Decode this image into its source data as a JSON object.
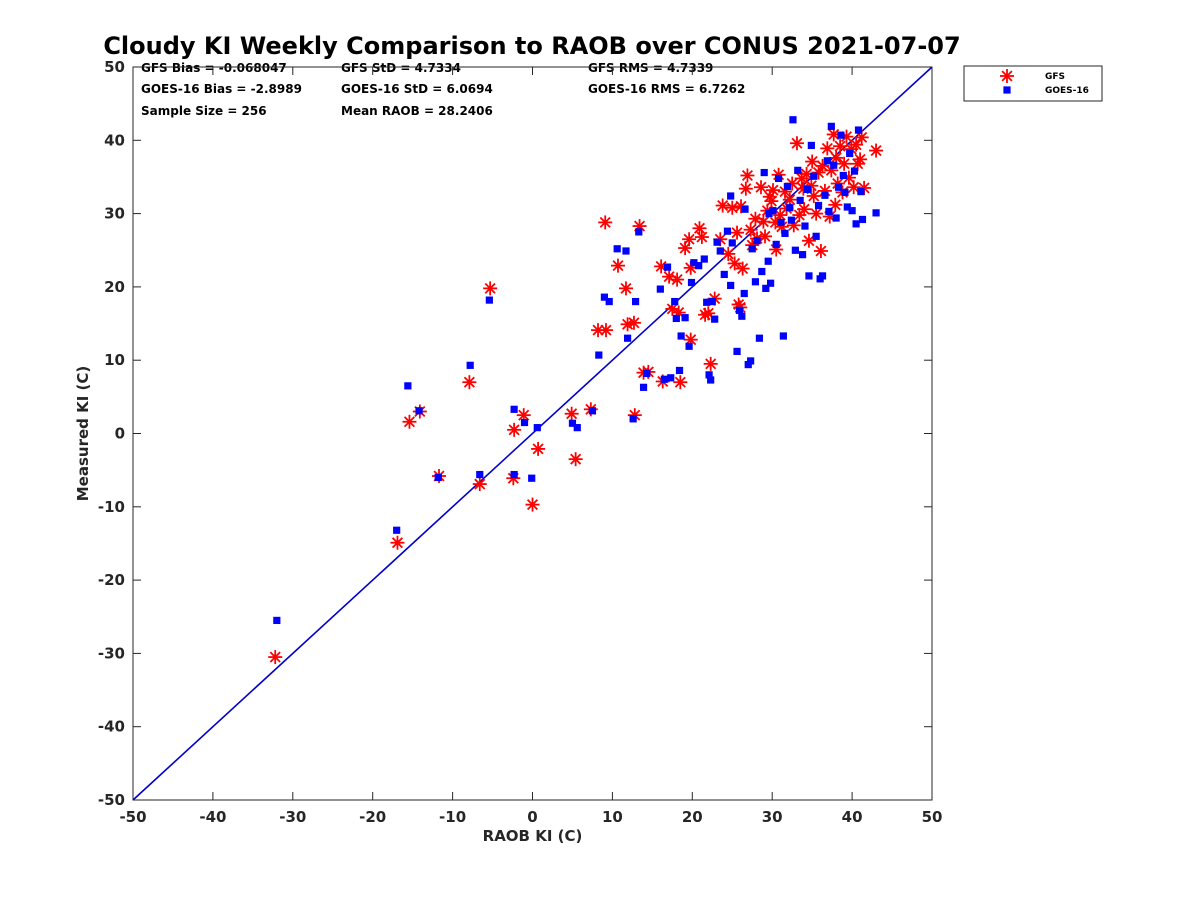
{
  "chart_data": {
    "type": "scatter",
    "title": "Cloudy KI Weekly Comparison to RAOB over CONUS 2021-07-07",
    "xlabel": "RAOB KI (C)",
    "ylabel": "Measured KI (C)",
    "xlim": [
      -50,
      50
    ],
    "ylim": [
      -50,
      50
    ],
    "x_ticks": [
      "-50",
      "-40",
      "-30",
      "-20",
      "-10",
      "0",
      "10",
      "20",
      "30",
      "40",
      "50"
    ],
    "y_ticks": [
      "-50",
      "-40",
      "-30",
      "-20",
      "-10",
      "0",
      "10",
      "20",
      "30",
      "40",
      "50"
    ],
    "grid": false,
    "legend_position": "top-right, outside",
    "reference_line": {
      "from": [
        -50,
        -50
      ],
      "to": [
        50,
        50
      ],
      "color": "#0000cc"
    },
    "stats": [
      {
        "label": "GFS Bias = -0.068047"
      },
      {
        "label": "GFS StD = 4.7334"
      },
      {
        "label": "GFS RMS = 4.7339"
      },
      {
        "label": "GOES-16 Bias = -2.8989"
      },
      {
        "label": "GOES-16 StD = 6.0694"
      },
      {
        "label": "GOES-16 RMS = 6.7262"
      },
      {
        "label": "Sample Size = 256"
      },
      {
        "label": "Mean RAOB = 28.2406"
      }
    ],
    "series": [
      {
        "name": "GFS",
        "marker": "asterisk",
        "color": "#ff0000",
        "points": [
          [
            -32.2,
            -30.5
          ],
          [
            -16.9,
            -14.9
          ],
          [
            -15.4,
            1.6
          ],
          [
            -14.1,
            3.0
          ],
          [
            -11.7,
            -5.8
          ],
          [
            -7.9,
            7.0
          ],
          [
            -6.6,
            -6.9
          ],
          [
            -5.3,
            19.8
          ],
          [
            -2.4,
            -6.1
          ],
          [
            -2.3,
            0.5
          ],
          [
            -1.1,
            2.5
          ],
          [
            0.0,
            -9.7
          ],
          [
            0.7,
            -2.1
          ],
          [
            4.9,
            2.7
          ],
          [
            5.4,
            -3.5
          ],
          [
            7.3,
            3.3
          ],
          [
            8.2,
            14.1
          ],
          [
            9.2,
            14.1
          ],
          [
            9.1,
            28.8
          ],
          [
            10.7,
            22.9
          ],
          [
            11.7,
            19.8
          ],
          [
            11.9,
            14.9
          ],
          [
            12.7,
            15.1
          ],
          [
            12.8,
            2.5
          ],
          [
            13.4,
            28.3
          ],
          [
            13.9,
            8.3
          ],
          [
            14.5,
            8.4
          ],
          [
            16.1,
            22.8
          ],
          [
            16.3,
            7.1
          ],
          [
            17.1,
            21.4
          ],
          [
            17.5,
            17.0
          ],
          [
            18.1,
            21.0
          ],
          [
            18.3,
            16.5
          ],
          [
            18.5,
            7.0
          ],
          [
            19.1,
            25.3
          ],
          [
            19.6,
            26.5
          ],
          [
            19.8,
            12.8
          ],
          [
            19.8,
            22.6
          ],
          [
            20.9,
            28.0
          ],
          [
            21.2,
            26.8
          ],
          [
            21.6,
            16.2
          ],
          [
            22.0,
            16.4
          ],
          [
            22.3,
            9.5
          ],
          [
            22.8,
            18.4
          ],
          [
            23.5,
            26.5
          ],
          [
            23.8,
            31.1
          ],
          [
            24.5,
            24.5
          ],
          [
            25.0,
            30.8
          ],
          [
            25.3,
            23.2
          ],
          [
            25.6,
            27.4
          ],
          [
            25.8,
            17.6
          ],
          [
            26.0,
            17.2
          ],
          [
            26.1,
            31.0
          ],
          [
            26.3,
            22.5
          ],
          [
            26.7,
            33.4
          ],
          [
            26.9,
            35.2
          ],
          [
            27.3,
            27.8
          ],
          [
            27.5,
            25.7
          ],
          [
            28.1,
            26.6
          ],
          [
            28.6,
            33.6
          ],
          [
            28.9,
            28.9
          ],
          [
            29.1,
            26.9
          ],
          [
            29.4,
            30.4
          ],
          [
            29.7,
            32.3
          ],
          [
            30.1,
            33.2
          ],
          [
            30.5,
            25.1
          ],
          [
            30.8,
            35.3
          ],
          [
            31.0,
            29.8
          ],
          [
            31.2,
            28.2
          ],
          [
            31.6,
            33.0
          ],
          [
            31.8,
            30.7
          ],
          [
            32.2,
            31.9
          ],
          [
            32.5,
            34.1
          ],
          [
            32.7,
            28.4
          ],
          [
            33.1,
            39.6
          ],
          [
            33.4,
            29.8
          ],
          [
            33.7,
            34.8
          ],
          [
            34.0,
            30.6
          ],
          [
            34.3,
            35.4
          ],
          [
            34.6,
            26.3
          ],
          [
            34.9,
            33.8
          ],
          [
            35.2,
            32.4
          ],
          [
            35.5,
            30.0
          ],
          [
            35.8,
            35.6
          ],
          [
            36.1,
            24.9
          ],
          [
            36.3,
            36.5
          ],
          [
            36.6,
            33.1
          ],
          [
            36.9,
            38.9
          ],
          [
            37.2,
            29.6
          ],
          [
            37.4,
            35.9
          ],
          [
            37.7,
            40.8
          ],
          [
            38.0,
            37.6
          ],
          [
            38.2,
            34.1
          ],
          [
            38.5,
            39.2
          ],
          [
            38.8,
            32.9
          ],
          [
            39.0,
            36.8
          ],
          [
            39.3,
            40.5
          ],
          [
            39.6,
            34.9
          ],
          [
            39.9,
            38.8
          ],
          [
            40.2,
            33.6
          ],
          [
            40.5,
            39.4
          ],
          [
            40.7,
            36.8
          ],
          [
            41.0,
            37.4
          ],
          [
            41.2,
            40.4
          ],
          [
            41.5,
            33.5
          ],
          [
            43.0,
            38.6
          ],
          [
            27.9,
            29.3
          ],
          [
            29.9,
            31.7
          ],
          [
            30.4,
            28.8
          ],
          [
            33.9,
            33.4
          ],
          [
            35.0,
            37.1
          ],
          [
            37.9,
            31.2
          ]
        ]
      },
      {
        "name": "GOES-16",
        "marker": "square",
        "color": "#0000ff",
        "points": [
          [
            -32.0,
            -25.5
          ],
          [
            -17.0,
            -13.2
          ],
          [
            -15.6,
            6.5
          ],
          [
            -14.2,
            3.1
          ],
          [
            -11.8,
            -6.0
          ],
          [
            -7.8,
            9.3
          ],
          [
            -6.6,
            -5.6
          ],
          [
            -5.4,
            18.2
          ],
          [
            -2.3,
            -5.6
          ],
          [
            -2.3,
            3.3
          ],
          [
            -1.0,
            1.5
          ],
          [
            -0.1,
            -6.1
          ],
          [
            0.6,
            0.8
          ],
          [
            5.0,
            1.4
          ],
          [
            5.6,
            0.8
          ],
          [
            7.5,
            3.1
          ],
          [
            8.3,
            10.7
          ],
          [
            9.0,
            18.6
          ],
          [
            9.6,
            18.0
          ],
          [
            10.6,
            25.2
          ],
          [
            11.7,
            24.9
          ],
          [
            11.9,
            13.0
          ],
          [
            12.6,
            2.0
          ],
          [
            12.9,
            18.0
          ],
          [
            13.3,
            27.5
          ],
          [
            13.9,
            6.3
          ],
          [
            14.3,
            8.2
          ],
          [
            16.0,
            19.7
          ],
          [
            16.5,
            7.4
          ],
          [
            16.9,
            22.7
          ],
          [
            17.3,
            7.6
          ],
          [
            17.8,
            18.0
          ],
          [
            18.0,
            15.7
          ],
          [
            18.4,
            8.6
          ],
          [
            18.6,
            13.3
          ],
          [
            19.1,
            15.8
          ],
          [
            19.6,
            11.9
          ],
          [
            19.9,
            20.6
          ],
          [
            20.2,
            23.3
          ],
          [
            20.8,
            22.9
          ],
          [
            21.5,
            23.8
          ],
          [
            21.8,
            17.9
          ],
          [
            22.1,
            8.0
          ],
          [
            22.3,
            7.3
          ],
          [
            22.5,
            18.0
          ],
          [
            22.8,
            15.6
          ],
          [
            23.1,
            26.1
          ],
          [
            23.5,
            24.9
          ],
          [
            24.0,
            21.7
          ],
          [
            24.4,
            27.6
          ],
          [
            24.8,
            20.2
          ],
          [
            25.0,
            26.0
          ],
          [
            25.6,
            11.2
          ],
          [
            25.9,
            16.8
          ],
          [
            26.2,
            16.0
          ],
          [
            26.5,
            19.1
          ],
          [
            27.0,
            9.4
          ],
          [
            27.3,
            9.9
          ],
          [
            27.5,
            25.2
          ],
          [
            27.9,
            20.7
          ],
          [
            28.1,
            26.3
          ],
          [
            28.4,
            13.0
          ],
          [
            28.7,
            22.1
          ],
          [
            29.0,
            35.6
          ],
          [
            29.2,
            19.8
          ],
          [
            29.5,
            23.5
          ],
          [
            29.8,
            20.5
          ],
          [
            30.1,
            30.4
          ],
          [
            30.5,
            25.8
          ],
          [
            30.8,
            34.8
          ],
          [
            31.1,
            28.8
          ],
          [
            31.4,
            13.3
          ],
          [
            31.6,
            27.3
          ],
          [
            31.9,
            33.7
          ],
          [
            32.2,
            30.8
          ],
          [
            32.6,
            42.8
          ],
          [
            32.9,
            25.0
          ],
          [
            33.2,
            35.9
          ],
          [
            33.5,
            31.8
          ],
          [
            33.8,
            24.4
          ],
          [
            34.1,
            28.3
          ],
          [
            34.4,
            33.3
          ],
          [
            34.6,
            21.5
          ],
          [
            34.9,
            39.3
          ],
          [
            35.2,
            35.1
          ],
          [
            35.5,
            26.9
          ],
          [
            35.8,
            31.1
          ],
          [
            36.0,
            21.1
          ],
          [
            36.3,
            21.5
          ],
          [
            36.6,
            32.5
          ],
          [
            36.9,
            37.2
          ],
          [
            37.1,
            30.3
          ],
          [
            37.4,
            41.9
          ],
          [
            37.7,
            36.6
          ],
          [
            38.0,
            29.4
          ],
          [
            38.3,
            33.6
          ],
          [
            38.6,
            40.7
          ],
          [
            38.9,
            35.2
          ],
          [
            39.1,
            32.9
          ],
          [
            39.4,
            30.9
          ],
          [
            39.7,
            38.2
          ],
          [
            40.0,
            30.4
          ],
          [
            40.3,
            35.8
          ],
          [
            40.5,
            28.6
          ],
          [
            40.8,
            41.4
          ],
          [
            41.1,
            33.0
          ],
          [
            41.3,
            29.2
          ],
          [
            43.0,
            30.1
          ],
          [
            24.8,
            32.4
          ],
          [
            26.6,
            30.6
          ],
          [
            29.6,
            30.0
          ],
          [
            32.4,
            29.1
          ]
        ]
      }
    ]
  }
}
